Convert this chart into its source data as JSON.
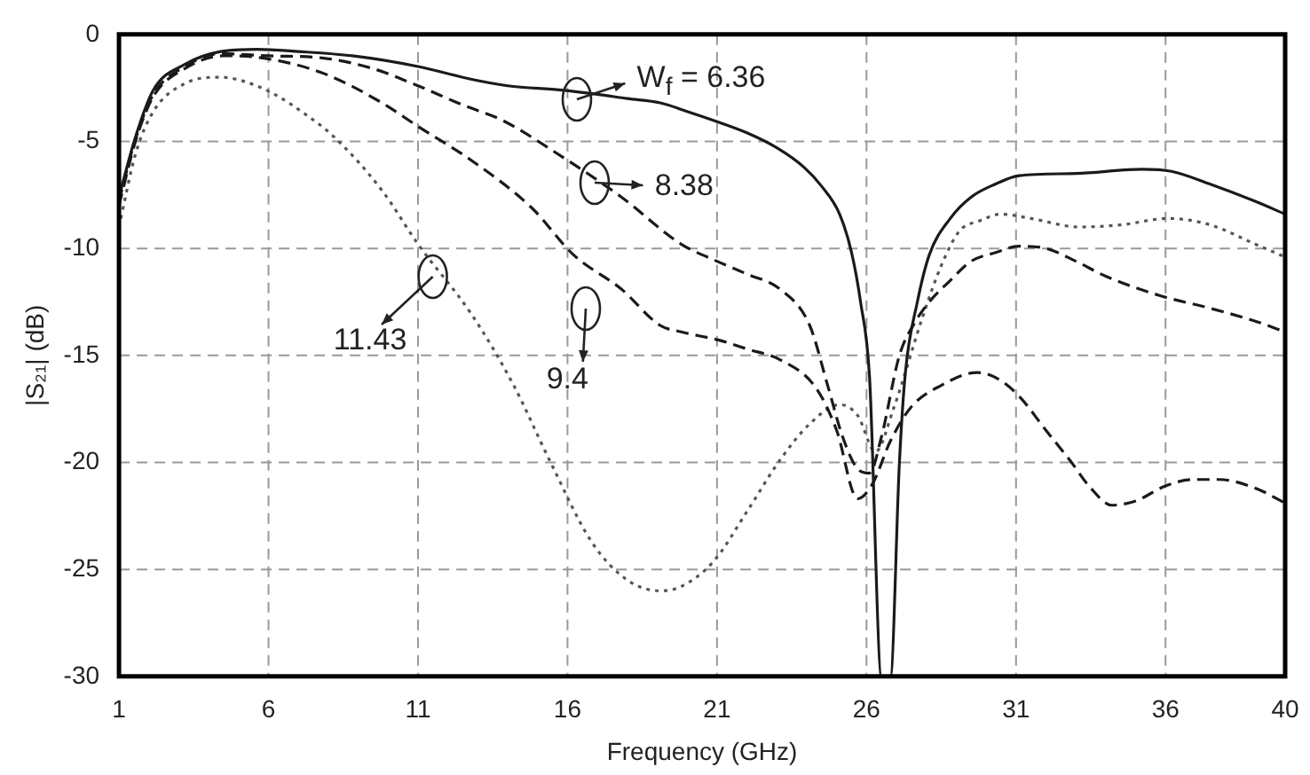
{
  "chart_data": {
    "type": "line",
    "xlabel": "Frequency (GHz)",
    "ylabel": "|S₂₁| (dB)",
    "xlim": [
      1,
      40
    ],
    "xticks": [
      1,
      6,
      11,
      16,
      21,
      26,
      31,
      36,
      40
    ],
    "ylim": [
      -30,
      0
    ],
    "yticks": [
      -30,
      -25,
      -20,
      -15,
      -10,
      -5,
      0
    ],
    "grid": true,
    "legend": false,
    "marker": "none",
    "series": [
      {
        "color": "#1a1a1a",
        "line_style": "solid",
        "x": [
          1,
          1.55,
          2.15,
          3.2,
          4.4,
          5.6,
          7,
          8.8,
          11,
          12.8,
          14,
          15.8,
          17,
          18,
          19.1,
          20,
          21.05,
          22,
          23,
          23.9,
          24.5,
          25.1,
          25.5,
          25.8,
          26.1,
          26.5,
          26.8,
          27.1,
          27.3,
          27.7,
          28.1,
          28.8,
          29.5,
          30.3,
          31.1,
          33,
          35.2,
          36.2,
          37.5,
          39,
          40
        ],
        "values": [
          -7.6,
          -4.8,
          -2.6,
          -1.4,
          -0.8,
          -0.7,
          -0.8,
          -1.0,
          -1.5,
          -2.1,
          -2.4,
          -2.6,
          -2.8,
          -3.0,
          -3.2,
          -3.6,
          -4.1,
          -4.6,
          -5.3,
          -6.2,
          -7.1,
          -8.4,
          -10.2,
          -12.5,
          -16,
          -30,
          -30,
          -20,
          -15.8,
          -12.5,
          -10.3,
          -8.6,
          -7.6,
          -7.0,
          -6.6,
          -6.5,
          -6.3,
          -6.4,
          -7.0,
          -7.8,
          -8.4
        ]
      },
      {
        "color": "#1a1a1a",
        "line_style": "dashed",
        "x": [
          1,
          1.55,
          2.15,
          3.2,
          4.4,
          6,
          7.8,
          9.5,
          11,
          12.5,
          13.8,
          15.8,
          17.8,
          19.8,
          21,
          22,
          23.1,
          24.1,
          24.7,
          25.2,
          25.7,
          26.1,
          26.5,
          27.1,
          27.6,
          28.1,
          28.8,
          29.5,
          30.3,
          31.1,
          32,
          33,
          34,
          35.8,
          37.5,
          39,
          40
        ],
        "values": [
          -7.8,
          -4.9,
          -2.8,
          -1.5,
          -0.9,
          -1.0,
          -1.1,
          -1.6,
          -2.4,
          -3.3,
          -4.0,
          -5.7,
          -7.6,
          -9.8,
          -10.6,
          -11.2,
          -11.9,
          -13.6,
          -16.4,
          -18.8,
          -20.3,
          -20.5,
          -18.8,
          -15,
          -13.5,
          -12.5,
          -11.5,
          -10.6,
          -10.2,
          -9.9,
          -10,
          -10.6,
          -11.3,
          -12.2,
          -12.8,
          -13.4,
          -13.9
        ]
      },
      {
        "color": "#1a1a1a",
        "line_style": "dashed",
        "x": [
          1,
          1.55,
          2.15,
          3.2,
          4.5,
          5.8,
          7.8,
          9.8,
          11,
          12.8,
          14.8,
          16.2,
          17.8,
          19.1,
          19.8,
          21.1,
          22,
          23.1,
          24.3,
          25,
          25.7,
          26.2,
          26.8,
          27.5,
          28.5,
          29.7,
          30.4,
          31.1,
          32,
          32.8,
          33.5,
          34.2,
          35,
          36,
          36.9,
          37.8,
          39,
          40
        ],
        "values": [
          -8,
          -5,
          -2.9,
          -1.6,
          -1.0,
          -1.1,
          -1.8,
          -3.2,
          -4.3,
          -5.9,
          -8.1,
          -10.3,
          -11.9,
          -13.6,
          -13.9,
          -14.3,
          -14.7,
          -15.2,
          -16.5,
          -18.5,
          -21.7,
          -21,
          -19,
          -17.4,
          -16.4,
          -15.8,
          -16.1,
          -16.9,
          -18.5,
          -19.9,
          -21.2,
          -22,
          -21.8,
          -21.1,
          -20.8,
          -20.8,
          -21.2,
          -21.9
        ]
      },
      {
        "color": "#555555",
        "line_style": "dotted",
        "x": [
          1,
          1.55,
          2.15,
          3.2,
          4.4,
          5.2,
          6.2,
          7.2,
          8.2,
          9.8,
          11,
          12.8,
          14.2,
          15.4,
          16.8,
          18,
          19.1,
          19.8,
          20.9,
          22,
          23.1,
          24.1,
          25.1,
          25.7,
          26.3,
          26.9,
          27.9,
          28.5,
          29.1,
          29.8,
          30.5,
          31.5,
          33.1,
          34.5,
          36.1,
          37.5,
          39,
          40
        ],
        "values": [
          -9,
          -5.6,
          -3.6,
          -2.3,
          -2.0,
          -2.2,
          -2.8,
          -3.7,
          -4.8,
          -7.3,
          -9.8,
          -13.1,
          -16.4,
          -19.9,
          -23.7,
          -25.5,
          -26,
          -25.8,
          -24.6,
          -22.3,
          -19.9,
          -18.2,
          -17.3,
          -17.8,
          -19.5,
          -17.5,
          -13.1,
          -10.8,
          -9.2,
          -8.7,
          -8.4,
          -8.6,
          -9.0,
          -8.9,
          -8.6,
          -8.9,
          -9.8,
          -10.4
        ]
      }
    ],
    "annotations": [
      {
        "text": "W$_{f}$ = 6.36",
        "x": 16.3,
        "y": -3.0
      },
      {
        "text": "8.38",
        "x": 16.9,
        "y": -6.9
      },
      {
        "text": "11.43",
        "x": 11.5,
        "y": -11.3
      },
      {
        "text": "9.4",
        "x": 16.6,
        "y": -12.8
      }
    ]
  }
}
